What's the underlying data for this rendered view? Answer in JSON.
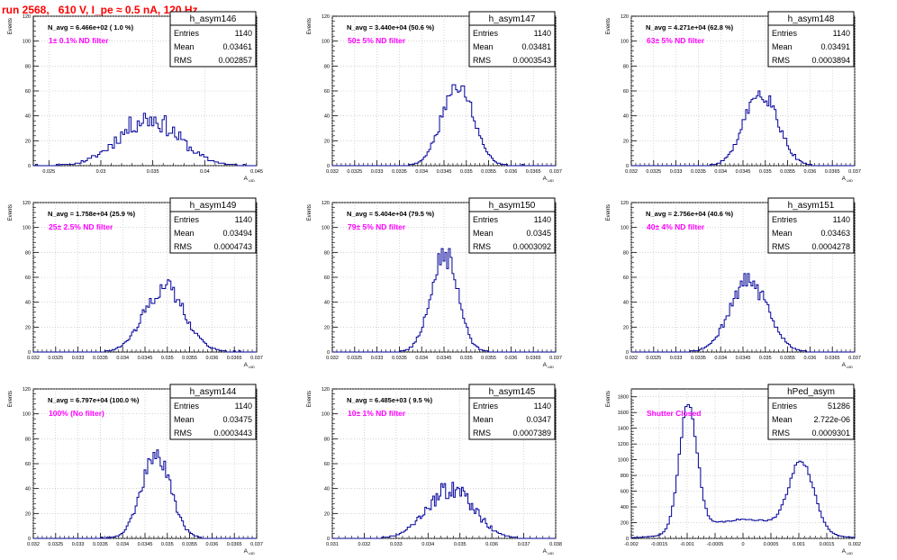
{
  "page": {
    "title": "run 2568,   610 V, I_pe ≈ 0.5 nA, 120 Hz"
  },
  "colors": {
    "title": "#ff0000",
    "annotation": "#ff00ff",
    "histogram": "#000099",
    "grid": "#bbbbbb",
    "axis": "#000000"
  },
  "stat_labels": {
    "entries": "Entries",
    "mean": "Mean",
    "rms": "RMS"
  },
  "chart_data": [
    {
      "type": "histogram",
      "name": "h_asym146",
      "stats": {
        "entries": "1140",
        "mean": "0.03461",
        "rms": "0.002857"
      },
      "navg": "N_avg = 6.466e+02 ( 1.0 %)",
      "annotation": "1± 0.1% ND filter",
      "xlabel": "A",
      "xlabel_sub": "UID",
      "ylabel": "Events",
      "xlim": [
        0.0235,
        0.045
      ],
      "ylim": [
        0,
        120
      ],
      "xticks": [
        0.025,
        0.03,
        0.035,
        0.04,
        0.045
      ],
      "xtick_labels": [
        "0.025",
        "0.03",
        "0.035",
        "0.04",
        "0.045"
      ],
      "yticks": [
        0,
        20,
        40,
        60,
        80,
        100,
        120
      ],
      "mean": 0.03461,
      "sigma": 0.002857,
      "peak": 38,
      "noise": 0.25,
      "bin_width": 0.0002,
      "seed": 11
    },
    {
      "type": "histogram",
      "name": "h_asym147",
      "stats": {
        "entries": "1140",
        "mean": "0.03481",
        "rms": "0.0003543"
      },
      "navg": "N_avg = 3.440e+04 (50.6 %)",
      "annotation": "50± 5% ND filter",
      "xlabel": "A",
      "xlabel_sub": "UID",
      "ylabel": "Events",
      "xlim": [
        0.032,
        0.037
      ],
      "ylim": [
        0,
        120
      ],
      "xticks": [
        0.032,
        0.0325,
        0.033,
        0.0335,
        0.034,
        0.0345,
        0.035,
        0.0355,
        0.036,
        0.0365,
        0.037
      ],
      "xtick_labels": [
        "0.032",
        "0.0325",
        "0.033",
        "0.0335",
        "0.034",
        "0.0345",
        "0.035",
        "0.0355",
        "0.036",
        "0.0365",
        "0.037"
      ],
      "yticks": [
        0,
        20,
        40,
        60,
        80,
        100,
        120
      ],
      "mean": 0.03481,
      "sigma": 0.00035,
      "peak": 66,
      "noise": 0.12,
      "bin_width": 4e-05,
      "seed": 21
    },
    {
      "type": "histogram",
      "name": "h_asym148",
      "stats": {
        "entries": "1140",
        "mean": "0.03491",
        "rms": "0.0003894"
      },
      "navg": "N_avg = 4.271e+04 (62.8 %)",
      "annotation": "63± 5% ND filter",
      "xlabel": "A",
      "xlabel_sub": "UID",
      "ylabel": "Events",
      "xlim": [
        0.032,
        0.037
      ],
      "ylim": [
        0,
        120
      ],
      "xticks": [
        0.032,
        0.0325,
        0.033,
        0.0335,
        0.034,
        0.0345,
        0.035,
        0.0355,
        0.036,
        0.0365,
        0.037
      ],
      "xtick_labels": [
        "0.032",
        "0.0325",
        "0.033",
        "0.0335",
        "0.034",
        "0.0345",
        "0.035",
        "0.0355",
        "0.036",
        "0.0365",
        "0.037"
      ],
      "yticks": [
        0,
        20,
        40,
        60,
        80,
        100,
        120
      ],
      "mean": 0.03491,
      "sigma": 0.00037,
      "peak": 60,
      "noise": 0.14,
      "bin_width": 4e-05,
      "seed": 31
    },
    {
      "type": "histogram",
      "name": "h_asym149",
      "stats": {
        "entries": "1140",
        "mean": "0.03494",
        "rms": "0.0004743"
      },
      "navg": "N_avg = 1.758e+04 (25.9 %)",
      "annotation": "25± 2.5% ND filter",
      "xlabel": "A",
      "xlabel_sub": "UID",
      "ylabel": "Events",
      "xlim": [
        0.032,
        0.037
      ],
      "ylim": [
        0,
        120
      ],
      "xticks": [
        0.032,
        0.0325,
        0.033,
        0.0335,
        0.034,
        0.0345,
        0.035,
        0.0355,
        0.036,
        0.0365,
        0.037
      ],
      "xtick_labels": [
        "0.032",
        "0.0325",
        "0.033",
        "0.0335",
        "0.034",
        "0.0345",
        "0.035",
        "0.0355",
        "0.036",
        "0.0365",
        "0.037"
      ],
      "yticks": [
        0,
        20,
        40,
        60,
        80,
        100,
        120
      ],
      "mean": 0.03494,
      "sigma": 0.00045,
      "peak": 52,
      "noise": 0.15,
      "bin_width": 4e-05,
      "seed": 41
    },
    {
      "type": "histogram",
      "name": "h_asym150",
      "stats": {
        "entries": "1140",
        "mean": "0.0345",
        "rms": "0.0003092"
      },
      "navg": "N_avg = 5.404e+04 (79.5 %)",
      "annotation": "79± 5% ND filter",
      "xlabel": "A",
      "xlabel_sub": "UID",
      "ylabel": "Events",
      "xlim": [
        0.032,
        0.037
      ],
      "ylim": [
        0,
        120
      ],
      "xticks": [
        0.032,
        0.0325,
        0.033,
        0.0335,
        0.034,
        0.0345,
        0.035,
        0.0355,
        0.036,
        0.0365,
        0.037
      ],
      "xtick_labels": [
        "0.032",
        "0.0325",
        "0.033",
        "0.0335",
        "0.034",
        "0.0345",
        "0.035",
        "0.0355",
        "0.036",
        "0.0365",
        "0.037"
      ],
      "yticks": [
        0,
        20,
        40,
        60,
        80,
        100,
        120
      ],
      "mean": 0.0345,
      "sigma": 0.0003,
      "peak": 80,
      "noise": 0.13,
      "bin_width": 4e-05,
      "seed": 51
    },
    {
      "type": "histogram",
      "name": "h_asym151",
      "stats": {
        "entries": "1140",
        "mean": "0.03463",
        "rms": "0.0004278"
      },
      "navg": "N_avg = 2.756e+04 (40.6 %)",
      "annotation": "40± 4% ND filter",
      "xlabel": "A",
      "xlabel_sub": "UID",
      "ylabel": "Events",
      "xlim": [
        0.032,
        0.037
      ],
      "ylim": [
        0,
        120
      ],
      "xticks": [
        0.032,
        0.0325,
        0.033,
        0.0335,
        0.034,
        0.0345,
        0.035,
        0.0355,
        0.036,
        0.0365,
        0.037
      ],
      "xtick_labels": [
        "0.032",
        "0.0325",
        "0.033",
        "0.0335",
        "0.034",
        "0.0345",
        "0.035",
        "0.0355",
        "0.036",
        "0.0365",
        "0.037"
      ],
      "yticks": [
        0,
        20,
        40,
        60,
        80,
        100,
        120
      ],
      "mean": 0.03463,
      "sigma": 0.00042,
      "peak": 57,
      "noise": 0.14,
      "bin_width": 4e-05,
      "seed": 61
    },
    {
      "type": "histogram",
      "name": "h_asym144",
      "stats": {
        "entries": "1140",
        "mean": "0.03475",
        "rms": "0.0003443"
      },
      "navg": "N_avg = 6.797e+04 (100.0 %)",
      "annotation": "100% (No filter)",
      "xlabel": "A",
      "xlabel_sub": "UID",
      "ylabel": "Events",
      "xlim": [
        0.032,
        0.037
      ],
      "ylim": [
        0,
        120
      ],
      "xticks": [
        0.032,
        0.0325,
        0.033,
        0.0335,
        0.034,
        0.0345,
        0.035,
        0.0355,
        0.036,
        0.0365,
        0.037
      ],
      "xtick_labels": [
        "0.032",
        "0.0325",
        "0.033",
        "0.0335",
        "0.034",
        "0.0345",
        "0.035",
        "0.0355",
        "0.036",
        "0.0365",
        "0.037"
      ],
      "yticks": [
        0,
        20,
        40,
        60,
        80,
        100,
        120
      ],
      "mean": 0.03475,
      "sigma": 0.00033,
      "peak": 66,
      "noise": 0.13,
      "bin_width": 4e-05,
      "seed": 71
    },
    {
      "type": "histogram",
      "name": "h_asym145",
      "stats": {
        "entries": "1140",
        "mean": "0.0347",
        "rms": "0.0007389"
      },
      "navg": "N_avg = 6.485e+03 ( 9.5 %)",
      "annotation": "10± 1% ND filter",
      "xlabel": "A",
      "xlabel_sub": "UID",
      "ylabel": "Events",
      "xlim": [
        0.031,
        0.038
      ],
      "ylim": [
        0,
        120
      ],
      "xticks": [
        0.031,
        0.032,
        0.033,
        0.034,
        0.035,
        0.036,
        0.037,
        0.038
      ],
      "xtick_labels": [
        "0.031",
        "0.032",
        "0.033",
        "0.034",
        "0.035",
        "0.036",
        "0.037",
        "0.038"
      ],
      "yticks": [
        0,
        20,
        40,
        60,
        80,
        100,
        120
      ],
      "mean": 0.0347,
      "sigma": 0.00072,
      "peak": 40,
      "noise": 0.2,
      "bin_width": 5e-05,
      "seed": 81
    },
    {
      "type": "histogram",
      "name": "hPed_asym",
      "stats": {
        "entries": "51286",
        "mean": "2.722e-06",
        "rms": "0.0009301"
      },
      "navg": "",
      "annotation": "Shutter Closed",
      "xlabel": "A",
      "xlabel_sub": "UID",
      "ylabel": "Events",
      "xlim": [
        -0.002,
        0.002
      ],
      "ylim": [
        0,
        1900
      ],
      "xticks": [
        -0.002,
        -0.0015,
        -0.001,
        -0.0005,
        0,
        0.0005,
        0.001,
        0.0015,
        0.002
      ],
      "xtick_labels": [
        "-0.002",
        "-0.0015",
        "-0.001",
        "-0.0005",
        "0",
        "0.0005",
        "0.001",
        "0.0015",
        "0.002"
      ],
      "yticks": [
        0,
        200,
        400,
        600,
        800,
        1000,
        1200,
        1400,
        1600,
        1800
      ],
      "peaks": [
        {
          "mean": -0.00098,
          "sigma": 0.00016,
          "height": 1600
        },
        {
          "mean": 0.00105,
          "sigma": 0.00022,
          "height": 880
        },
        {
          "mean": 5e-05,
          "sigma": 0.0008,
          "height": 240
        }
      ],
      "noise": 0.04,
      "bin_width": 4e-05,
      "seed": 91
    }
  ]
}
